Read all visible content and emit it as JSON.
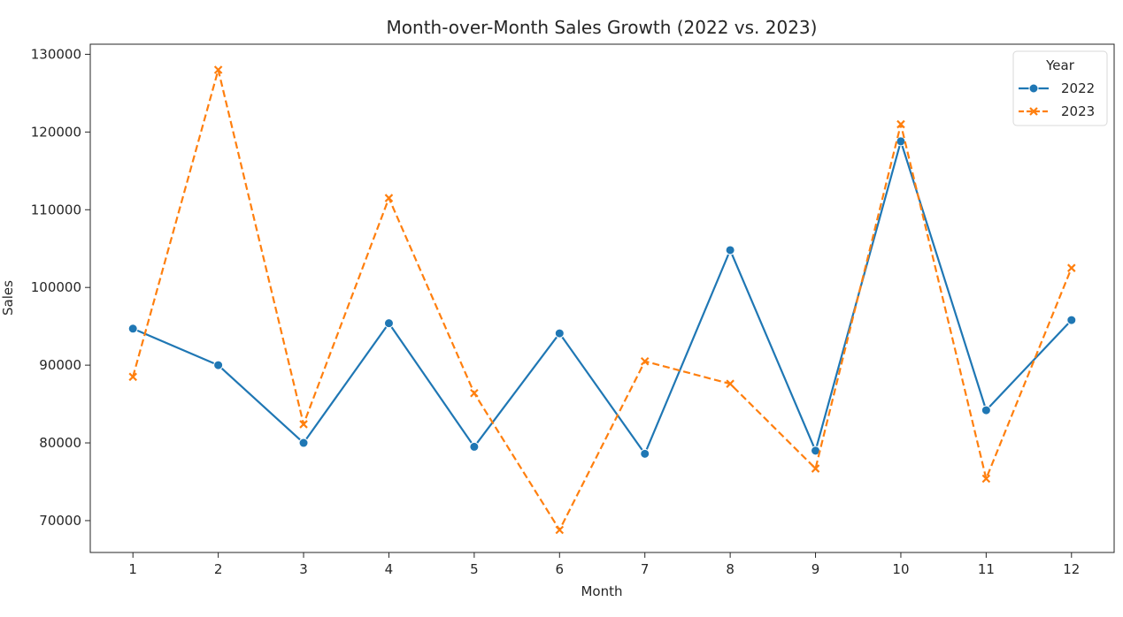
{
  "chart_data": {
    "type": "line",
    "title": "Month-over-Month Sales Growth (2022 vs. 2023)",
    "xlabel": "Month",
    "ylabel": "Sales",
    "x": [
      1,
      2,
      3,
      4,
      5,
      6,
      7,
      8,
      9,
      10,
      11,
      12
    ],
    "xlim": [
      0.5,
      12.5
    ],
    "ylim": [
      65900,
      131300
    ],
    "yticks": [
      70000,
      80000,
      90000,
      100000,
      110000,
      120000,
      130000
    ],
    "grid": false,
    "legend": {
      "title": "Year",
      "placement": "top-right"
    },
    "series": [
      {
        "name": "2022",
        "color": "#1f77b4",
        "marker": "circle",
        "linestyle": "solid",
        "values": [
          94700,
          90000,
          80000,
          95400,
          79500,
          94100,
          78600,
          104800,
          79000,
          118800,
          84200,
          95800
        ]
      },
      {
        "name": "2023",
        "color": "#ff7f0e",
        "marker": "x",
        "linestyle": "dashed",
        "values": [
          88500,
          128000,
          82400,
          111500,
          86400,
          68800,
          90500,
          87600,
          76700,
          121000,
          75400,
          102500
        ]
      }
    ]
  }
}
